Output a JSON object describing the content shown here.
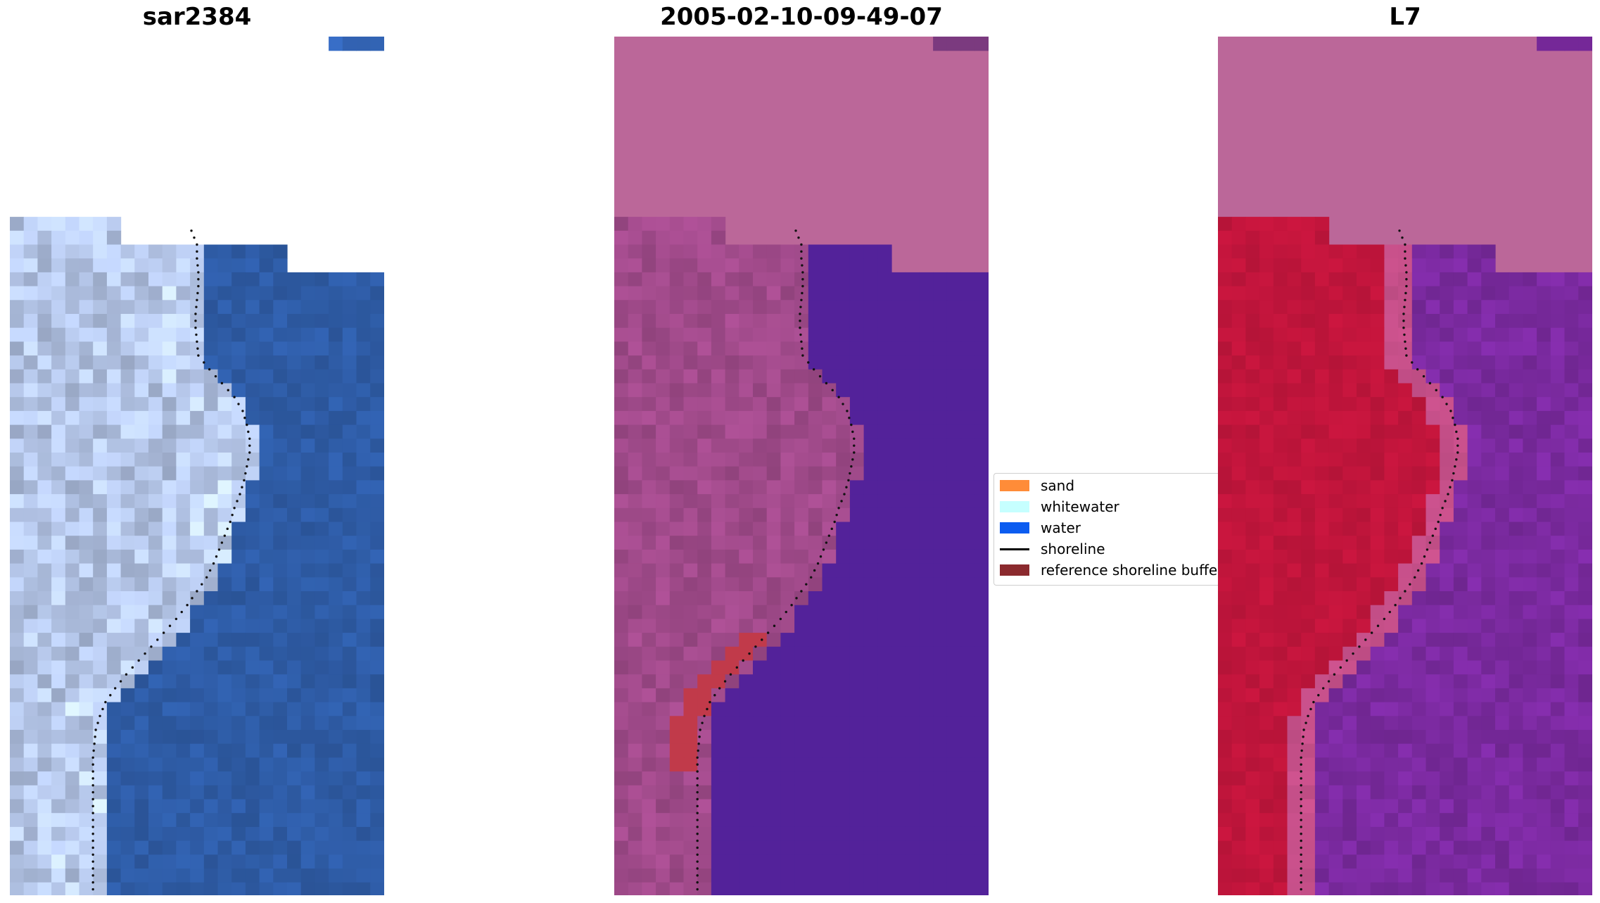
{
  "panels": [
    {
      "title": "sar2384",
      "style": "rgb"
    },
    {
      "title": "2005-02-10-09-49-07",
      "style": "classified"
    },
    {
      "title": "L7",
      "style": "ndwi"
    }
  ],
  "legend": {
    "items": [
      {
        "label": "sand",
        "color": "#ff8c38",
        "kind": "patch"
      },
      {
        "label": "whitewater",
        "color": "#c6ffff",
        "kind": "patch"
      },
      {
        "label": "water",
        "color": "#0b5cf0",
        "kind": "patch"
      },
      {
        "label": "shoreline",
        "color": "#000000",
        "kind": "line"
      },
      {
        "label": "reference shoreline buffer",
        "color": "#8b2a2e",
        "kind": "patch"
      }
    ]
  },
  "colors": {
    "nodata": "#bb6799",
    "water_rgb": "#2f5da8",
    "land_rgb": "#a8b8d8",
    "class_land": "#a04a8a",
    "class_water": "#53229a",
    "class_buffer": "#c13a4a",
    "ndwi_land": "#c2153c",
    "ndwi_water": "#7b2aa0"
  }
}
